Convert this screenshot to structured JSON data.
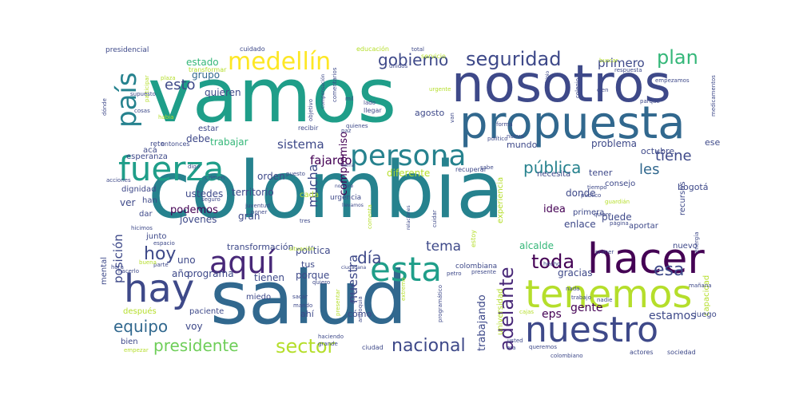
{
  "wordcloud": {
    "palette": [
      "#440154",
      "#482878",
      "#3e4989",
      "#31688e",
      "#26828e",
      "#1f9e89",
      "#35b779",
      "#6ece58",
      "#b5de2b",
      "#fde725"
    ],
    "words": [
      {
        "text": "colombia",
        "color": "#26828e"
      },
      {
        "text": "vamos",
        "color": "#1f9e89"
      },
      {
        "text": "salud",
        "color": "#31688e"
      },
      {
        "text": "nosotros",
        "color": "#3e4989"
      },
      {
        "text": "propuesta",
        "color": "#31688e"
      },
      {
        "text": "hacer",
        "color": "#440154"
      },
      {
        "text": "tenemos",
        "color": "#b5de2b"
      },
      {
        "text": "nuestro",
        "color": "#3e4989"
      },
      {
        "text": "hay",
        "color": "#3e4989"
      },
      {
        "text": "fuerza",
        "color": "#1f9e89"
      },
      {
        "text": "persona",
        "color": "#26828e"
      },
      {
        "text": "aquí",
        "color": "#482878"
      },
      {
        "text": "esta",
        "color": "#1f9e89"
      },
      {
        "text": "medellín",
        "color": "#fde725"
      },
      {
        "text": "país",
        "color": "#26828e"
      },
      {
        "text": "seguridad",
        "color": "#3e4989"
      },
      {
        "text": "plan",
        "color": "#35b779"
      },
      {
        "text": "gobierno",
        "color": "#3e4989"
      },
      {
        "text": "adelante",
        "color": "#482878"
      },
      {
        "text": "sector",
        "color": "#b5de2b"
      },
      {
        "text": "toda",
        "color": "#440154"
      },
      {
        "text": "esa",
        "color": "#3e4989"
      },
      {
        "text": "día",
        "color": "#3e4989"
      },
      {
        "text": "hoy",
        "color": "#3e4989"
      },
      {
        "text": "nacional",
        "color": "#3e4989"
      },
      {
        "text": "presidente",
        "color": "#6ece58"
      },
      {
        "text": "pública",
        "color": "#26828e"
      },
      {
        "text": "equipo",
        "color": "#31688e"
      },
      {
        "text": "esto",
        "color": "#3e4989"
      },
      {
        "text": "primero",
        "color": "#3e4989"
      },
      {
        "text": "tiene",
        "color": "#3e4989"
      },
      {
        "text": "tema",
        "color": "#3e4989"
      },
      {
        "text": "les",
        "color": "#31688e"
      },
      {
        "text": "nuestra",
        "color": "#3e4989"
      },
      {
        "text": "mucha",
        "color": "#3e4989"
      },
      {
        "text": "sistema",
        "color": "#3e4989"
      },
      {
        "text": "fajardo",
        "color": "#440154"
      },
      {
        "text": "posición",
        "color": "#3e4989"
      },
      {
        "text": "podemos",
        "color": "#440154"
      },
      {
        "text": "gente",
        "color": "#440154"
      },
      {
        "text": "estamos",
        "color": "#3e4989"
      },
      {
        "text": "eps",
        "color": "#440154"
      },
      {
        "text": "trabajando",
        "color": "#3e4989"
      },
      {
        "text": "compromiso",
        "color": "#440154"
      },
      {
        "text": "estado",
        "color": "#35b779"
      },
      {
        "text": "grupo",
        "color": "#31688e"
      },
      {
        "text": "quieren",
        "color": "#3e4989"
      },
      {
        "text": "orden",
        "color": "#3e4989"
      },
      {
        "text": "territorio",
        "color": "#3e4989"
      },
      {
        "text": "trabajar",
        "color": "#35b779"
      },
      {
        "text": "debe",
        "color": "#3e4989"
      },
      {
        "text": "donde",
        "color": "#3e4989"
      },
      {
        "text": "problema",
        "color": "#3e4989"
      },
      {
        "text": "puede",
        "color": "#3e4989"
      },
      {
        "text": "idea",
        "color": "#440154"
      },
      {
        "text": "enlace",
        "color": "#3e4989"
      },
      {
        "text": "gracias",
        "color": "#3e4989"
      },
      {
        "text": "alcalde",
        "color": "#35b779"
      },
      {
        "text": "política",
        "color": "#3e4989"
      },
      {
        "text": "porque",
        "color": "#3e4989"
      },
      {
        "text": "tienen",
        "color": "#3e4989"
      },
      {
        "text": "programa",
        "color": "#3e4989"
      },
      {
        "text": "año",
        "color": "#3e4989"
      },
      {
        "text": "uno",
        "color": "#3e4989"
      },
      {
        "text": "voy",
        "color": "#3e4989"
      },
      {
        "text": "ver",
        "color": "#3e4989"
      },
      {
        "text": "gran",
        "color": "#3e4989"
      },
      {
        "text": "ustedes",
        "color": "#3e4989"
      },
      {
        "text": "jóvenes",
        "color": "#3e4989"
      },
      {
        "text": "diferente",
        "color": "#b5de2b"
      },
      {
        "text": "agosto",
        "color": "#3e4989"
      },
      {
        "text": "bogotá",
        "color": "#3e4989"
      },
      {
        "text": "tener",
        "color": "#3e4989"
      },
      {
        "text": "ese",
        "color": "#3e4989"
      },
      {
        "text": "octubre",
        "color": "#3e4989"
      },
      {
        "text": "mundo",
        "color": "#3e4989"
      },
      {
        "text": "necesita",
        "color": "#3e4989"
      },
      {
        "text": "experiencia",
        "color": "#b5de2b"
      },
      {
        "text": "consejo",
        "color": "#3e4989"
      },
      {
        "text": "primera",
        "color": "#3e4989"
      },
      {
        "text": "aportar",
        "color": "#3e4989"
      },
      {
        "text": "nuevo",
        "color": "#3e4989"
      },
      {
        "text": "recursos",
        "color": "#3e4989"
      },
      {
        "text": "capacidad",
        "color": "#b5de2b"
      },
      {
        "text": "juego",
        "color": "#3e4989"
      },
      {
        "text": "universidad",
        "color": "#b5de2b"
      },
      {
        "text": "transformación",
        "color": "#3e4989"
      },
      {
        "text": "tus",
        "color": "#3e4989"
      },
      {
        "text": "ahí",
        "color": "#3e4989"
      },
      {
        "text": "cómo",
        "color": "#3e4989"
      },
      {
        "text": "miedo",
        "color": "#3e4989"
      },
      {
        "text": "paciente",
        "color": "#3e4989"
      },
      {
        "text": "bien",
        "color": "#3e4989"
      },
      {
        "text": "después",
        "color": "#b5de2b"
      },
      {
        "text": "mental",
        "color": "#3e4989"
      },
      {
        "text": "junto",
        "color": "#3e4989"
      },
      {
        "text": "dar",
        "color": "#3e4989"
      },
      {
        "text": "dignidad",
        "color": "#3e4989"
      },
      {
        "text": "han",
        "color": "#3e4989"
      },
      {
        "text": "esperanza",
        "color": "#3e4989"
      },
      {
        "text": "acá",
        "color": "#3e4989"
      },
      {
        "text": "estar",
        "color": "#3e4989"
      },
      {
        "text": "reto",
        "color": "#3e4989"
      },
      {
        "text": "entonces",
        "color": "#3e4989"
      },
      {
        "text": "cada",
        "color": "#b5de2b"
      },
      {
        "text": "colombiana",
        "color": "#3e4989"
      },
      {
        "text": "presidencial",
        "color": "#3e4989"
      },
      {
        "text": "cuidado",
        "color": "#3e4989"
      },
      {
        "text": "educación",
        "color": "#b5de2b"
      },
      {
        "text": "servicio",
        "color": "#b5de2b"
      },
      {
        "text": "transformar",
        "color": "#b5de2b"
      },
      {
        "text": "recibir",
        "color": "#3e4989"
      },
      {
        "text": "cosas",
        "color": "#3e4989"
      },
      {
        "text": "respuesta",
        "color": "#3e4989"
      },
      {
        "text": "empezamos",
        "color": "#3e4989"
      },
      {
        "text": "medicamentos",
        "color": "#3e4989"
      },
      {
        "text": "buscar",
        "color": "#b5de2b"
      },
      {
        "text": "parque",
        "color": "#3e4989"
      },
      {
        "text": "unidos",
        "color": "#3e4989"
      },
      {
        "text": "participar",
        "color": "#b5de2b"
      },
      {
        "text": "plaza",
        "color": "#b5de2b"
      },
      {
        "text": "dónde",
        "color": "#3e4989"
      },
      {
        "text": "había",
        "color": "#b5de2b"
      },
      {
        "text": "crimen",
        "color": "#3e4989"
      },
      {
        "text": "digo",
        "color": "#3e4989"
      },
      {
        "text": "poner",
        "color": "#3e4989"
      },
      {
        "text": "juventud",
        "color": "#3e4989"
      },
      {
        "text": "urgencia",
        "color": "#3e4989"
      },
      {
        "text": "espacio",
        "color": "#3e4989"
      },
      {
        "text": "parte",
        "color": "#3e4989"
      },
      {
        "text": "hecho",
        "color": "#3e4989"
      },
      {
        "text": "primer",
        "color": "#3e4989"
      },
      {
        "text": "energía",
        "color": "#3e4989"
      },
      {
        "text": "página",
        "color": "#3e4989"
      },
      {
        "text": "guardián",
        "color": "#b5de2b"
      },
      {
        "text": "quiere",
        "color": "#3e4989"
      },
      {
        "text": "tiempo",
        "color": "#3e4989"
      },
      {
        "text": "público",
        "color": "#3e4989"
      },
      {
        "text": "nada",
        "color": "#3e4989"
      },
      {
        "text": "trabajo",
        "color": "#3e4989"
      },
      {
        "text": "nadie",
        "color": "#3e4989"
      },
      {
        "text": "actores",
        "color": "#3e4989"
      },
      {
        "text": "sociedad",
        "color": "#3e4989"
      },
      {
        "text": "colombiano",
        "color": "#3e4989"
      },
      {
        "text": "queremos",
        "color": "#3e4989"
      },
      {
        "text": "usted",
        "color": "#3e4989"
      },
      {
        "text": "ciudad",
        "color": "#3e4989"
      },
      {
        "text": "grande",
        "color": "#3e4989"
      },
      {
        "text": "haciendo",
        "color": "#3e4989"
      },
      {
        "text": "programático",
        "color": "#3e4989"
      },
      {
        "text": "mando",
        "color": "#3e4989"
      },
      {
        "text": "sacar",
        "color": "#3e4989"
      },
      {
        "text": "quiero",
        "color": "#3e4989"
      },
      {
        "text": "presente",
        "color": "#3e4989"
      },
      {
        "text": "situación",
        "color": "#b5de2b"
      },
      {
        "text": "ciudadana",
        "color": "#3e4989"
      },
      {
        "text": "petro",
        "color": "#3e4989"
      },
      {
        "text": "cuidar",
        "color": "#3e4989"
      },
      {
        "text": "comenta",
        "color": "#b5de2b"
      },
      {
        "text": "relaciones",
        "color": "#3e4989"
      },
      {
        "text": "tres",
        "color": "#3e4989"
      },
      {
        "text": "cultura",
        "color": "#3e4989"
      },
      {
        "text": "presentar",
        "color": "#b5de2b"
      },
      {
        "text": "antioquia",
        "color": "#3e4989"
      },
      {
        "text": "recuperar",
        "color": "#3e4989"
      },
      {
        "text": "sabe",
        "color": "#3e4989"
      },
      {
        "text": "estoy",
        "color": "#b5de2b"
      },
      {
        "text": "político",
        "color": "#3e4989"
      },
      {
        "text": "forma",
        "color": "#3e4989"
      },
      {
        "text": "nueva",
        "color": "#3e4989"
      },
      {
        "text": "comentarios",
        "color": "#3e4989"
      },
      {
        "text": "compensación",
        "color": "#3e4989"
      },
      {
        "text": "objetivo",
        "color": "#3e4989"
      },
      {
        "text": "lado",
        "color": "#3e4989"
      },
      {
        "text": "llegar",
        "color": "#3e4989"
      },
      {
        "text": "mil",
        "color": "#3e4989"
      },
      {
        "text": "total",
        "color": "#3e4989"
      },
      {
        "text": "urgente",
        "color": "#b5de2b"
      },
      {
        "text": "van",
        "color": "#3e4989"
      },
      {
        "text": "municipio",
        "color": "#3e4989"
      },
      {
        "text": "colegio",
        "color": "#3e4989"
      },
      {
        "text": "cien",
        "color": "#3e4989"
      },
      {
        "text": "mañana",
        "color": "#3e4989"
      },
      {
        "text": "hora",
        "color": "#3e4989"
      },
      {
        "text": "hacerlo",
        "color": "#3e4989"
      },
      {
        "text": "buena",
        "color": "#b5de2b"
      },
      {
        "text": "empezar",
        "color": "#b5de2b"
      },
      {
        "text": "hicimos",
        "color": "#3e4989"
      },
      {
        "text": "acciones",
        "color": "#3e4989"
      },
      {
        "text": "seguro",
        "color": "#3e4989"
      },
      {
        "text": "puesto",
        "color": "#3e4989"
      },
      {
        "text": "supuesto",
        "color": "#3e4989"
      },
      {
        "text": "extremo",
        "color": "#b5de2b"
      },
      {
        "text": "era",
        "color": "#3e4989"
      },
      {
        "text": "cajas",
        "color": "#b5de2b"
      },
      {
        "text": "paz",
        "color": "#3e4989"
      },
      {
        "text": "quienes",
        "color": "#3e4989"
      },
      {
        "text": "tierra",
        "color": "#3e4989"
      },
      {
        "text": "nombre",
        "color": "#3e4989"
      },
      {
        "text": "llevamos",
        "color": "#3e4989"
      }
    ]
  }
}
